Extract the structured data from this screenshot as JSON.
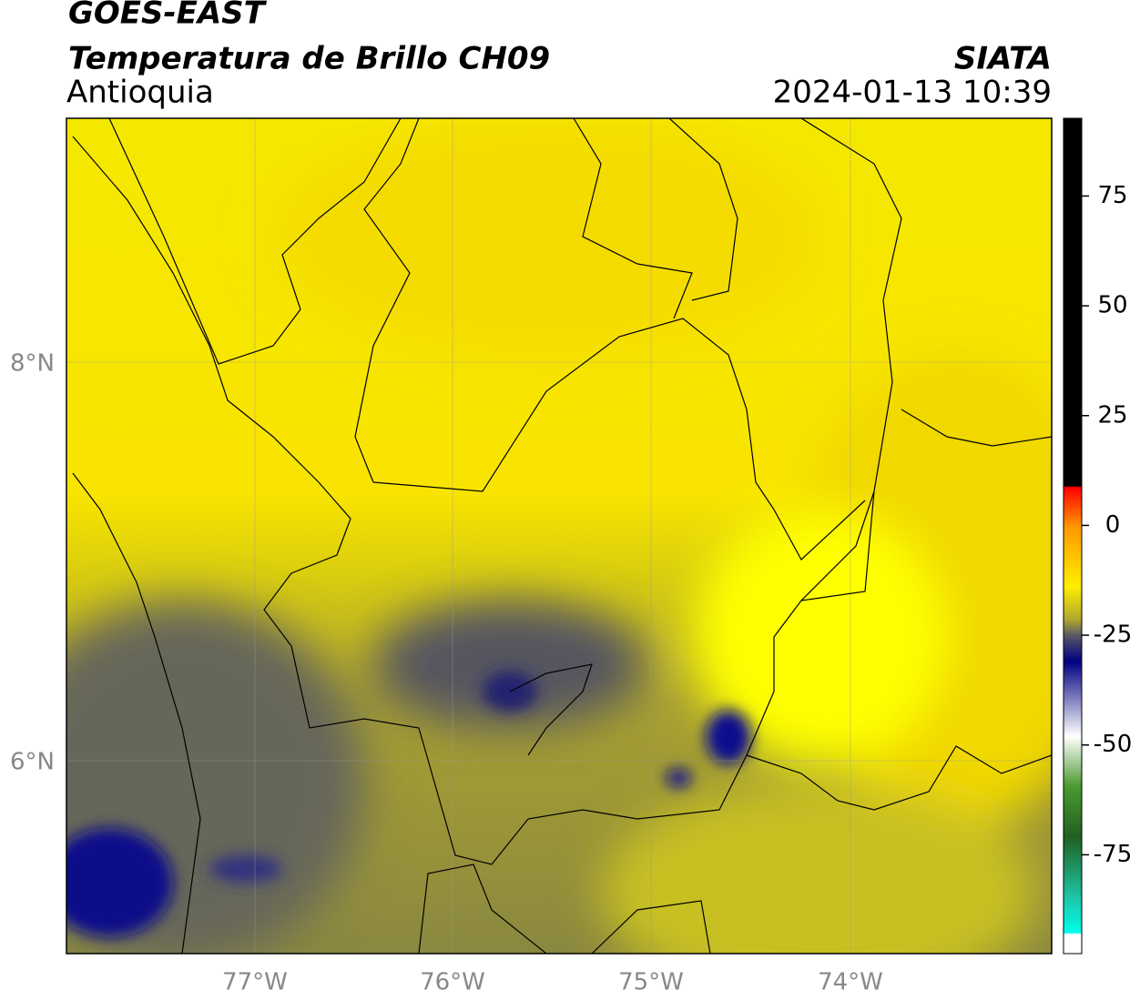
{
  "header": {
    "title": "GOES-EAST",
    "subtitle": "Temperatura de Brillo CH09",
    "region": "Antioquia",
    "source": "SIATA",
    "datetime": "2024-01-13 10:39"
  },
  "map": {
    "lon_labels": [
      "77°W",
      "76°W",
      "75°W",
      "74°W"
    ],
    "lat_labels": [
      "8°N",
      "6°N"
    ]
  },
  "colorbar": {
    "range": [
      -97.5,
      92.7
    ],
    "ticks": [
      75,
      50,
      25,
      0,
      -25,
      -50,
      -75
    ]
  }
}
